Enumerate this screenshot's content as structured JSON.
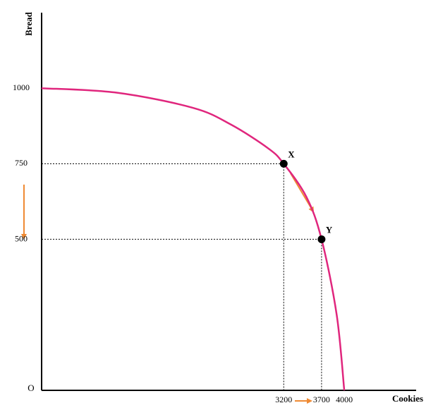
{
  "chart_data": {
    "type": "line",
    "x_label": "Cookies",
    "y_label": "Bread",
    "origin_label": "O",
    "xlim": [
      0,
      4950
    ],
    "ylim": [
      0,
      1250
    ],
    "xticks": [
      3200,
      3700,
      4000
    ],
    "yticks": [
      500,
      750,
      1000
    ],
    "x": [
      0,
      1000,
      2000,
      2500,
      3000,
      3200,
      3500,
      3700,
      3900,
      4000
    ],
    "series": [
      {
        "color": "#e0267d",
        "values": [
          1000,
          985,
          935,
          880,
          800,
          750,
          640,
          500,
          250,
          0
        ]
      }
    ],
    "points": {
      "labels": [
        "X",
        "Y"
      ],
      "x": [
        3200,
        3700
      ],
      "y": [
        750,
        500
      ],
      "color": "#000000"
    },
    "guides": true
  }
}
